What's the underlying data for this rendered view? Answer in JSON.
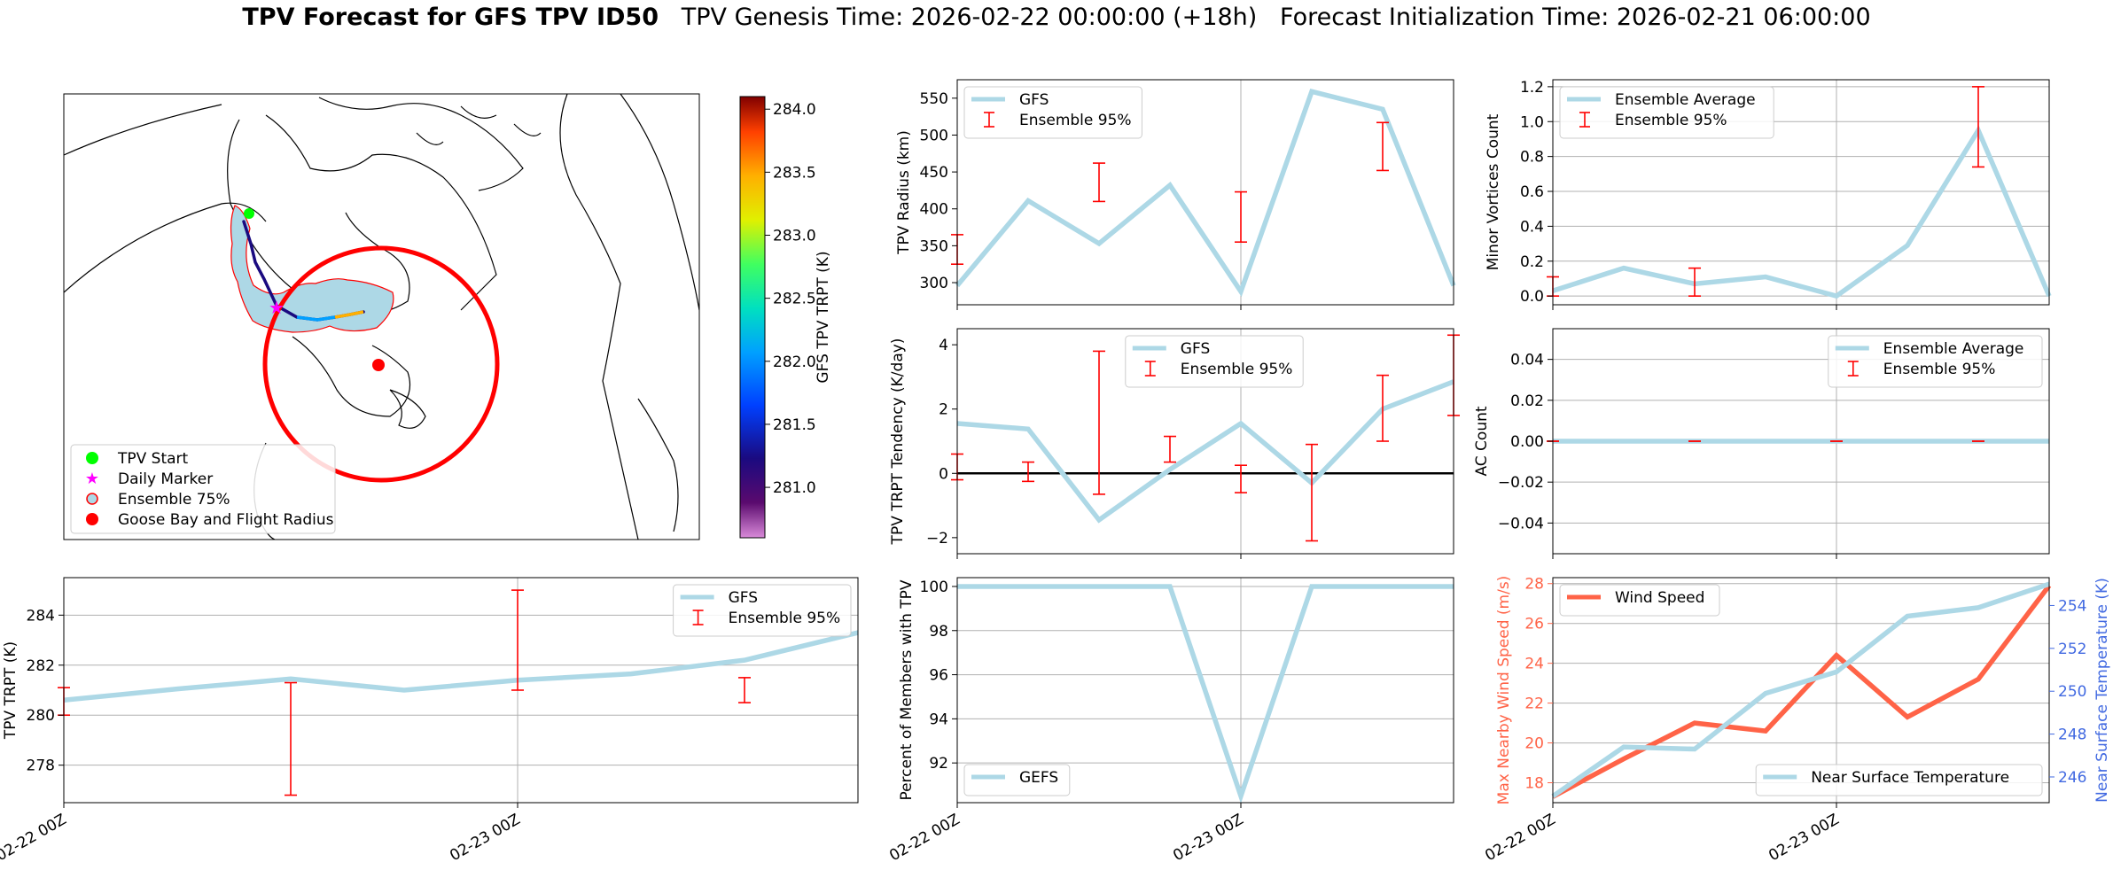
{
  "header": {
    "title_bold": "TPV Forecast for GFS TPV ID50",
    "title_rest": "TPV Genesis Time: 2026-02-22 00:00:00 (+18h)   Forecast Initialization Time: 2026-02-21 06:00:00"
  },
  "colors": {
    "gfs_line": "#add8e6",
    "error_bar": "#ff0000",
    "wind_line": "#ff6347",
    "temp_axis": "#4169e1",
    "zero_line": "#000000",
    "start_marker": "#00ff00",
    "daily_marker": "#ff00ff",
    "goose_bay": "#ff0000"
  },
  "map": {
    "colorbar_label": "GFS TPV TRPT (K)",
    "colorbar_ticks": [
      "284.0",
      "283.5",
      "283.0",
      "282.5",
      "282.0",
      "281.5",
      "281.0"
    ],
    "colorbar_range": [
      280.6,
      284.1
    ],
    "legend": [
      "TPV Start",
      "Daily Marker",
      "Ensemble 75%",
      "Goose Bay and Flight Radius"
    ]
  },
  "chart_data": [
    {
      "id": "radius",
      "type": "line",
      "ylabel": "TPV Radius (km)",
      "ylim": [
        270,
        575
      ],
      "yticks": [
        "300",
        "350",
        "400",
        "450",
        "500",
        "550"
      ],
      "ytick_values": [
        300,
        350,
        400,
        450,
        500,
        550
      ],
      "legend": [
        "GFS",
        "Ensemble 95%"
      ],
      "legend_pos": "upper-left",
      "x_hours": [
        0,
        6,
        12,
        18,
        24,
        30,
        36,
        42
      ],
      "series": [
        {
          "name": "GFS",
          "values": [
            296,
            411,
            353,
            432,
            288,
            559,
            535,
            296
          ]
        }
      ],
      "errorbars": [
        {
          "x": 0,
          "low": 325,
          "high": 365
        },
        {
          "x": 12,
          "low": 410,
          "high": 462
        },
        {
          "x": 24,
          "low": 355,
          "high": 423
        },
        {
          "x": 36,
          "low": 452,
          "high": 517
        }
      ],
      "xgrid": [
        24
      ],
      "hgrid": false
    },
    {
      "id": "minor",
      "type": "line",
      "ylabel": "Minor Vortices Count",
      "ylim": [
        -0.05,
        1.24
      ],
      "yticks": [
        "0.0",
        "0.2",
        "0.4",
        "0.6",
        "0.8",
        "1.0",
        "1.2"
      ],
      "ytick_values": [
        0,
        0.2,
        0.4,
        0.6,
        0.8,
        1.0,
        1.2
      ],
      "legend": [
        "Ensemble Average",
        "Ensemble 95%"
      ],
      "legend_pos": "upper-left",
      "x_hours": [
        0,
        6,
        12,
        18,
        24,
        30,
        36,
        42
      ],
      "series": [
        {
          "name": "Ensemble Average",
          "values": [
            0.03,
            0.16,
            0.07,
            0.11,
            0.0,
            0.29,
            0.95,
            0.0
          ]
        }
      ],
      "errorbars": [
        {
          "x": 0,
          "low": 0.0,
          "high": 0.11
        },
        {
          "x": 12,
          "low": 0.0,
          "high": 0.16
        },
        {
          "x": 36,
          "low": 0.74,
          "high": 1.2
        }
      ],
      "xgrid": [
        24
      ],
      "hgrid": true
    },
    {
      "id": "tendency",
      "type": "line",
      "ylabel": "TPV TRPT Tendency (K/day)",
      "ylim": [
        -2.5,
        4.5
      ],
      "yticks": [
        "−2",
        "0",
        "2",
        "4"
      ],
      "ytick_values": [
        -2,
        0,
        2,
        4
      ],
      "legend": [
        "GFS",
        "Ensemble 95%"
      ],
      "legend_pos": "upper-center",
      "x_hours": [
        0,
        6,
        12,
        18,
        24,
        30,
        36,
        42
      ],
      "series": [
        {
          "name": "GFS",
          "values": [
            1.55,
            1.38,
            -1.45,
            0.12,
            1.55,
            -0.3,
            2.0,
            2.85
          ]
        }
      ],
      "errorbars": [
        {
          "x": 0,
          "low": -0.2,
          "high": 0.6
        },
        {
          "x": 6,
          "low": -0.25,
          "high": 0.35
        },
        {
          "x": 12,
          "low": -0.65,
          "high": 3.8
        },
        {
          "x": 18,
          "low": 0.35,
          "high": 1.15
        },
        {
          "x": 24,
          "low": -0.6,
          "high": 0.25
        },
        {
          "x": 30,
          "low": -2.1,
          "high": 0.9
        },
        {
          "x": 36,
          "low": 1.0,
          "high": 3.05
        },
        {
          "x": 42,
          "low": 1.8,
          "high": 4.3
        }
      ],
      "zero_line": true,
      "xgrid": [
        24
      ],
      "hgrid": false
    },
    {
      "id": "ac",
      "type": "line",
      "ylabel": "AC Count",
      "ylim": [
        -0.055,
        0.055
      ],
      "yticks": [
        "−0.04",
        "−0.02",
        "0.00",
        "0.02",
        "0.04"
      ],
      "ytick_values": [
        -0.04,
        -0.02,
        0,
        0.02,
        0.04
      ],
      "legend": [
        "Ensemble Average",
        "Ensemble 95%"
      ],
      "legend_pos": "upper-right",
      "x_hours": [
        0,
        6,
        12,
        18,
        24,
        30,
        36,
        42
      ],
      "series": [
        {
          "name": "Ensemble Average",
          "values": [
            0,
            0,
            0,
            0,
            0,
            0,
            0,
            0
          ]
        }
      ],
      "errorbars": [
        {
          "x": 0,
          "low": 0,
          "high": 0
        },
        {
          "x": 12,
          "low": 0,
          "high": 0
        },
        {
          "x": 24,
          "low": 0,
          "high": 0
        },
        {
          "x": 36,
          "low": 0,
          "high": 0
        }
      ],
      "xgrid": [
        24
      ],
      "hgrid": true
    },
    {
      "id": "trpt",
      "type": "line",
      "ylabel": "TPV TRPT (K)",
      "ylim": [
        276.5,
        285.5
      ],
      "yticks": [
        "278",
        "280",
        "282",
        "284"
      ],
      "ytick_values": [
        278,
        280,
        282,
        284
      ],
      "legend": [
        "GFS",
        "Ensemble 95%"
      ],
      "legend_pos": "upper-right",
      "x_hours": [
        0,
        6,
        12,
        18,
        24,
        30,
        36,
        42
      ],
      "xticklabels": [
        "02-22 00Z",
        "02-23 00Z"
      ],
      "xtick_hours": [
        0,
        24
      ],
      "series": [
        {
          "name": "GFS",
          "values": [
            280.6,
            281.05,
            281.45,
            281.0,
            281.4,
            281.65,
            282.2,
            283.3
          ]
        }
      ],
      "errorbars": [
        {
          "x": 0,
          "low": 280.0,
          "high": 281.1
        },
        {
          "x": 12,
          "low": 276.8,
          "high": 281.3
        },
        {
          "x": 24,
          "low": 281.0,
          "high": 285.0
        },
        {
          "x": 36,
          "low": 280.5,
          "high": 281.5
        }
      ],
      "xgrid": [
        24
      ],
      "hgrid": true
    },
    {
      "id": "percent",
      "type": "line",
      "ylabel": "Percent of Members with TPV",
      "ylim": [
        90.2,
        100.4
      ],
      "yticks": [
        "92",
        "94",
        "96",
        "98",
        "100"
      ],
      "ytick_values": [
        92,
        94,
        96,
        98,
        100
      ],
      "legend": [
        "GEFS"
      ],
      "legend_pos": "lower-left",
      "x_hours": [
        0,
        6,
        12,
        18,
        24,
        30,
        36,
        42
      ],
      "xticklabels": [
        "02-22 00Z",
        "02-23 00Z"
      ],
      "xtick_hours": [
        0,
        24
      ],
      "series": [
        {
          "name": "GEFS",
          "values": [
            100,
            100,
            100,
            100,
            90.5,
            100,
            100,
            100
          ]
        }
      ],
      "errorbars": [],
      "xgrid": [
        24
      ],
      "hgrid": true
    },
    {
      "id": "wind",
      "type": "line",
      "ylabel": "Max Nearby Wind Speed (m/s)",
      "ylim": [
        17.0,
        28.3
      ],
      "yticks": [
        "18",
        "20",
        "22",
        "24",
        "26",
        "28"
      ],
      "ytick_values": [
        18,
        20,
        22,
        24,
        26,
        28
      ],
      "ylabel2": "Near Surface Temperature (K)",
      "ylim2": [
        244.8,
        255.3
      ],
      "yticks2": [
        "246",
        "248",
        "250",
        "252",
        "254"
      ],
      "ytick_values2": [
        246,
        248,
        250,
        252,
        254
      ],
      "legend": [
        "Wind Speed"
      ],
      "legend2": [
        "Near Surface Temperature"
      ],
      "x_hours": [
        0,
        6,
        12,
        18,
        24,
        30,
        36,
        42
      ],
      "xticklabels": [
        "02-22 00Z",
        "02-23 00Z"
      ],
      "xtick_hours": [
        0,
        24
      ],
      "series": [
        {
          "name": "Wind Speed",
          "values": [
            17.3,
            19.2,
            21.0,
            20.6,
            24.4,
            21.3,
            23.2,
            27.9
          ]
        },
        {
          "name": "Near Surface Temperature",
          "values": [
            245.1,
            247.4,
            247.3,
            249.9,
            250.9,
            253.5,
            253.9,
            255.0
          ]
        }
      ],
      "errorbars": [],
      "xgrid": [
        24
      ],
      "hgrid": true
    }
  ]
}
